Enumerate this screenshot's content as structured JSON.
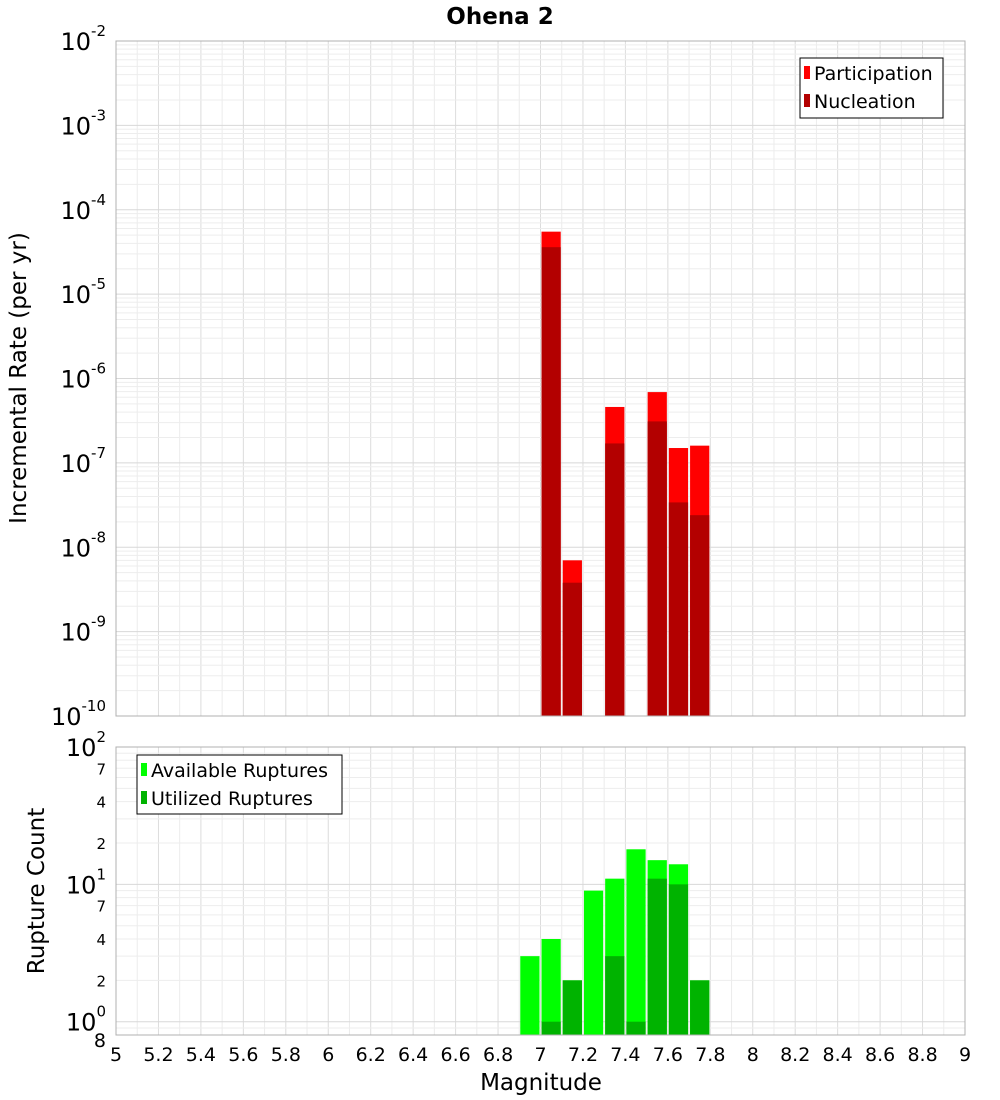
{
  "title": "Ohena 2",
  "xlabel": "Magnitude",
  "x_ticks": [
    "5",
    "5.2",
    "5.4",
    "5.6",
    "5.8",
    "6",
    "6.2",
    "6.4",
    "6.6",
    "6.8",
    "7",
    "7.2",
    "7.4",
    "7.6",
    "7.8",
    "8",
    "8.2",
    "8.4",
    "8.6",
    "8.8",
    "9"
  ],
  "chart_data": [
    {
      "type": "bar",
      "ylabel": "Incremental Rate (per yr)",
      "y_scale": "log",
      "ylim": [
        1e-10,
        0.01
      ],
      "xlim": [
        5,
        9
      ],
      "bar_width": 0.1,
      "y_ticks": [
        {
          "base": "10",
          "exp": "-10"
        },
        {
          "base": "10",
          "exp": "-9"
        },
        {
          "base": "10",
          "exp": "-8"
        },
        {
          "base": "10",
          "exp": "-7"
        },
        {
          "base": "10",
          "exp": "-6"
        },
        {
          "base": "10",
          "exp": "-5"
        },
        {
          "base": "10",
          "exp": "-4"
        },
        {
          "base": "10",
          "exp": "-3"
        },
        {
          "base": "10",
          "exp": "-2"
        }
      ],
      "legend": "top-right",
      "grid": true,
      "series": [
        {
          "name": "Participation",
          "color": "#ff0000",
          "points": [
            [
              7.05,
              5.5e-05
            ],
            [
              7.15,
              7e-09
            ],
            [
              7.35,
              4.6e-07
            ],
            [
              7.55,
              6.9e-07
            ],
            [
              7.65,
              1.5e-07
            ],
            [
              7.75,
              1.6e-07
            ]
          ]
        },
        {
          "name": "Nucleation",
          "color": "#b30000",
          "points": [
            [
              7.05,
              3.6e-05
            ],
            [
              7.15,
              3.8e-09
            ],
            [
              7.35,
              1.7e-07
            ],
            [
              7.55,
              3.1e-07
            ],
            [
              7.65,
              3.4e-08
            ],
            [
              7.75,
              2.4e-08
            ]
          ]
        }
      ]
    },
    {
      "type": "bar",
      "ylabel": "Rupture Count",
      "y_scale": "log",
      "ylim": [
        0.8,
        100
      ],
      "xlim": [
        5,
        9
      ],
      "bar_width": 0.1,
      "y_ticks": [
        {
          "base": "10",
          "exp": "0"
        },
        {
          "base": "10",
          "exp": "1"
        },
        {
          "base": "10",
          "exp": "2"
        }
      ],
      "y_minor_labels": [
        "8",
        "2",
        "4",
        "7",
        "2",
        "4",
        "7"
      ],
      "legend": "top-left",
      "grid": true,
      "series": [
        {
          "name": "Available Ruptures",
          "color": "#00ff00",
          "points": [
            [
              6.95,
              3
            ],
            [
              7.05,
              4
            ],
            [
              7.15,
              2
            ],
            [
              7.25,
              9
            ],
            [
              7.35,
              11
            ],
            [
              7.45,
              18
            ],
            [
              7.55,
              15
            ],
            [
              7.65,
              14
            ],
            [
              7.75,
              2
            ]
          ]
        },
        {
          "name": "Utilized Ruptures",
          "color": "#00b300",
          "points": [
            [
              7.05,
              1
            ],
            [
              7.15,
              2
            ],
            [
              7.35,
              3
            ],
            [
              7.45,
              1
            ],
            [
              7.55,
              11
            ],
            [
              7.65,
              10
            ],
            [
              7.75,
              2
            ]
          ]
        }
      ]
    }
  ]
}
